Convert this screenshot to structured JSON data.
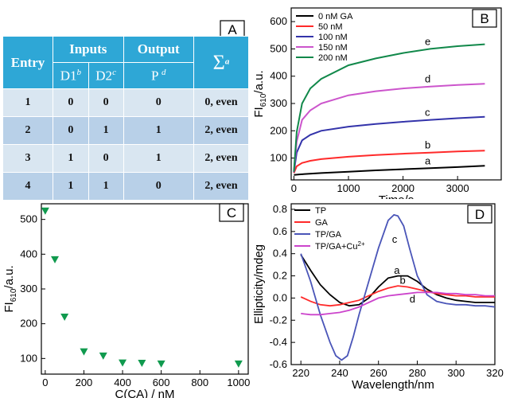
{
  "panel_a": {
    "label": "A",
    "header": {
      "entry": "Entry",
      "inputs": "Inputs",
      "output": "Output",
      "sigma": "Σ",
      "sigma_sup": "a",
      "d1": "D1",
      "d1_sup": "b",
      "d2": "D2",
      "d2_sup": "c",
      "p": "P",
      "p_sup": "d"
    },
    "rows": [
      {
        "entry": "1",
        "d1": "0",
        "d2": "0",
        "p": "0",
        "sum": "0, even"
      },
      {
        "entry": "2",
        "d1": "0",
        "d2": "1",
        "p": "1",
        "sum": "2, even"
      },
      {
        "entry": "3",
        "d1": "1",
        "d2": "0",
        "p": "1",
        "sum": "2, even"
      },
      {
        "entry": "4",
        "d1": "1",
        "d2": "1",
        "p": "0",
        "sum": "2, even"
      }
    ]
  },
  "chart_data": [
    {
      "panel": "B",
      "type": "line",
      "xlabel": "Time/s",
      "ylabel": "FI610/a.u.",
      "xlim": [
        -50,
        3800
      ],
      "ylim": [
        20,
        650
      ],
      "xticks": [
        0,
        1000,
        2000,
        3000
      ],
      "yticks": [
        100,
        200,
        300,
        400,
        500,
        600
      ],
      "legend_position": "top-left",
      "series": [
        {
          "name": "0 nM GA",
          "label": "a",
          "color": "#000000",
          "x": [
            0,
            100,
            500,
            1000,
            1500,
            2000,
            2500,
            3000,
            3500
          ],
          "y": [
            38,
            40,
            45,
            50,
            55,
            59,
            63,
            67,
            72
          ]
        },
        {
          "name": "50 nM",
          "label": "b",
          "color": "#ff2a2a",
          "x": [
            0,
            50,
            150,
            300,
            500,
            1000,
            1500,
            2000,
            2500,
            3000,
            3500
          ],
          "y": [
            45,
            70,
            82,
            90,
            96,
            105,
            111,
            116,
            120,
            124,
            127
          ]
        },
        {
          "name": "100 nM",
          "label": "c",
          "color": "#3333aa",
          "x": [
            0,
            50,
            150,
            300,
            500,
            1000,
            1500,
            2000,
            2500,
            3000,
            3500
          ],
          "y": [
            48,
            120,
            165,
            185,
            200,
            215,
            225,
            233,
            240,
            246,
            251
          ]
        },
        {
          "name": "150 nM",
          "label": "d",
          "color": "#cc55cc",
          "x": [
            0,
            50,
            150,
            300,
            500,
            1000,
            1500,
            2000,
            2500,
            3000,
            3500
          ],
          "y": [
            50,
            160,
            240,
            275,
            300,
            330,
            345,
            355,
            362,
            368,
            372
          ]
        },
        {
          "name": "200 nM",
          "label": "e",
          "color": "#11884a",
          "x": [
            0,
            50,
            150,
            300,
            500,
            1000,
            1500,
            2000,
            2500,
            3000,
            3500
          ],
          "y": [
            50,
            195,
            300,
            355,
            390,
            440,
            465,
            485,
            500,
            510,
            517
          ]
        }
      ]
    },
    {
      "panel": "C",
      "type": "scatter",
      "xlabel": "C(CA) / nM",
      "ylabel": "FI610/a.u.",
      "xlim": [
        -20,
        1050
      ],
      "ylim": [
        55,
        545
      ],
      "xticks": [
        0,
        200,
        400,
        600,
        800,
        1000
      ],
      "yticks": [
        100,
        200,
        300,
        400,
        500
      ],
      "marker": "down-triangle",
      "color": "#109a4e",
      "x": [
        0,
        50,
        100,
        200,
        300,
        400,
        500,
        600,
        1000
      ],
      "y": [
        525,
        385,
        220,
        120,
        108,
        88,
        87,
        85,
        85
      ]
    },
    {
      "panel": "D",
      "type": "line",
      "xlabel": "Wavelength/nm",
      "ylabel": "Ellipticity/mdeg",
      "xlim": [
        215,
        320
      ],
      "ylim": [
        -0.6,
        0.85
      ],
      "xticks": [
        220,
        240,
        260,
        280,
        300,
        320
      ],
      "yticks": [
        -0.6,
        -0.4,
        -0.2,
        0.0,
        0.2,
        0.4,
        0.6,
        0.8
      ],
      "legend_position": "top-left",
      "series": [
        {
          "name": "TP",
          "label": "a",
          "color": "#000000",
          "x": [
            220,
            225,
            230,
            235,
            240,
            245,
            250,
            255,
            260,
            265,
            270,
            275,
            280,
            285,
            290,
            295,
            300,
            305,
            310,
            315,
            320
          ],
          "y": [
            0.39,
            0.25,
            0.12,
            0.03,
            -0.04,
            -0.07,
            -0.06,
            0.0,
            0.1,
            0.18,
            0.2,
            0.2,
            0.15,
            0.08,
            0.03,
            0.0,
            -0.02,
            -0.03,
            -0.04,
            -0.04,
            -0.04
          ]
        },
        {
          "name": "GA",
          "label": "b",
          "color": "#ff2a2a",
          "x": [
            220,
            225,
            230,
            235,
            240,
            245,
            250,
            255,
            260,
            265,
            270,
            275,
            280,
            285,
            290,
            295,
            300,
            305,
            310,
            315,
            320
          ],
          "y": [
            0.01,
            -0.03,
            -0.06,
            -0.07,
            -0.06,
            -0.04,
            -0.02,
            0.02,
            0.06,
            0.09,
            0.11,
            0.1,
            0.08,
            0.06,
            0.04,
            0.03,
            0.02,
            0.02,
            0.01,
            0.01,
            0.01
          ]
        },
        {
          "name": "TP/GA",
          "label": "c",
          "color": "#4a55b8",
          "x": [
            220,
            225,
            230,
            235,
            238,
            241,
            244,
            247,
            250,
            255,
            260,
            265,
            268,
            270,
            273,
            276,
            280,
            285,
            290,
            295,
            300,
            305,
            310,
            315,
            320
          ],
          "y": [
            0.4,
            0.15,
            -0.15,
            -0.4,
            -0.52,
            -0.56,
            -0.52,
            -0.35,
            -0.15,
            0.15,
            0.45,
            0.7,
            0.75,
            0.74,
            0.65,
            0.45,
            0.2,
            0.03,
            -0.03,
            -0.05,
            -0.06,
            -0.06,
            -0.07,
            -0.07,
            -0.08
          ]
        },
        {
          "name": "TP/GA+Cu2+",
          "label": "d",
          "color": "#cc44cc",
          "x": [
            220,
            225,
            230,
            235,
            240,
            245,
            250,
            255,
            260,
            265,
            270,
            275,
            280,
            285,
            290,
            295,
            300,
            305,
            310,
            315,
            320
          ],
          "y": [
            -0.14,
            -0.15,
            -0.15,
            -0.14,
            -0.13,
            -0.11,
            -0.08,
            -0.04,
            0.0,
            0.02,
            0.03,
            0.04,
            0.05,
            0.05,
            0.05,
            0.04,
            0.04,
            0.03,
            0.03,
            0.02,
            0.02
          ]
        }
      ]
    }
  ]
}
